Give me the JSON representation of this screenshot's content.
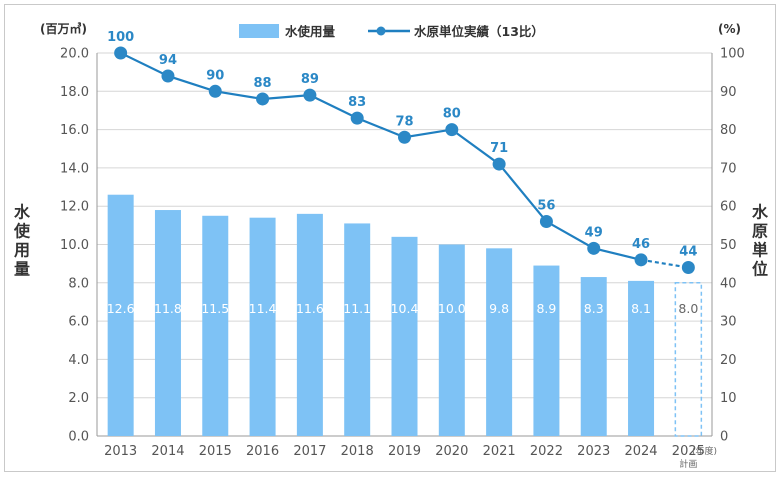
{
  "colors": {
    "bar": "#7ec2f5",
    "bar_plan_border": "#7ec2f5",
    "line": "#1f7fc0",
    "point": "#2b88c6",
    "grid": "#d6d6d6",
    "axis": "#9a9a9a"
  },
  "legend": {
    "bar_label": "水使用量",
    "line_label": "水原単位実績（13比）"
  },
  "axes": {
    "left_unit": "(百万㎥)",
    "right_unit": "(%)",
    "left_title": "水使用量",
    "right_title": "水原単位",
    "x_unit": "(年度)",
    "plan_label": "計画"
  },
  "chart_data": {
    "type": "bar+line",
    "categories": [
      "2013",
      "2014",
      "2015",
      "2016",
      "2017",
      "2018",
      "2019",
      "2020",
      "2021",
      "2022",
      "2023",
      "2024",
      "2025"
    ],
    "series": [
      {
        "name": "水使用量",
        "type": "bar",
        "axis": "left",
        "values": [
          12.6,
          11.8,
          11.5,
          11.4,
          11.6,
          11.1,
          10.4,
          10.0,
          9.8,
          8.9,
          8.3,
          8.1,
          8.0
        ],
        "labels": [
          "12.6",
          "11.8",
          "11.5",
          "11.4",
          "11.6",
          "11.1",
          "10.4",
          "10.0",
          "9.8",
          "8.9",
          "8.3",
          "8.1",
          "8.0"
        ],
        "plan_index": 12
      },
      {
        "name": "水原単位実績（13比）",
        "type": "line",
        "axis": "right",
        "values": [
          100,
          94,
          90,
          88,
          89,
          83,
          78,
          80,
          71,
          56,
          49,
          46,
          44
        ],
        "labels": [
          "100",
          "94",
          "90",
          "88",
          "89",
          "83",
          "78",
          "80",
          "71",
          "56",
          "49",
          "46",
          "44"
        ],
        "dashed_from_index": 11
      }
    ],
    "left_axis": {
      "ylim": [
        0,
        20
      ],
      "ticks": [
        "0.0",
        "2.0",
        "4.0",
        "6.0",
        "8.0",
        "10.0",
        "12.0",
        "14.0",
        "16.0",
        "18.0",
        "20.0"
      ]
    },
    "right_axis": {
      "ylim": [
        0,
        100
      ],
      "ticks": [
        "0",
        "10",
        "20",
        "30",
        "40",
        "50",
        "60",
        "70",
        "80",
        "90",
        "100"
      ]
    },
    "grid": true,
    "legend_position": "top-center"
  }
}
